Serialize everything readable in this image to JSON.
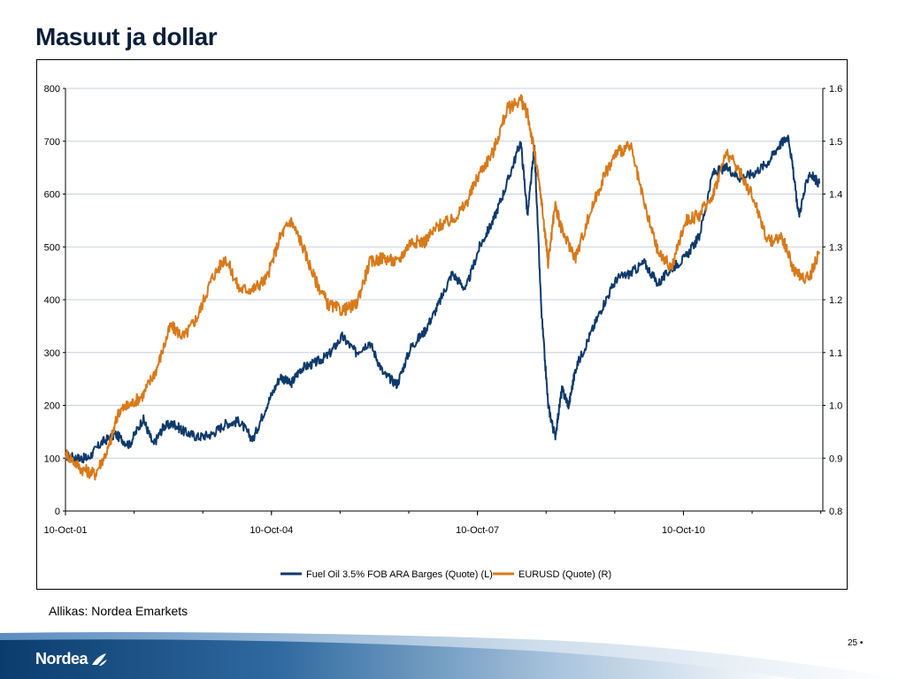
{
  "slide": {
    "title": "Masuut ja dollar",
    "source": "Allikas: Nordea Emarkets",
    "page_number": "25 •",
    "logo_text": "Nordea"
  },
  "colors": {
    "fuel_oil": "#0e3a6b",
    "eurusd": "#d77a1a",
    "grid": "#c8d0dc",
    "title": "#0b1f3a",
    "footer_dark": "#0b3c6e"
  },
  "chart_data": {
    "type": "line",
    "title": "",
    "xlabel": "",
    "ylabel_left": "",
    "ylabel_right": "",
    "x_ticks": [
      "10-Oct-01",
      "10-Oct-04",
      "10-Oct-07",
      "10-Oct-10"
    ],
    "y_left_ticks": [
      "0",
      "100",
      "200",
      "300",
      "400",
      "500",
      "600",
      "700",
      "800"
    ],
    "y_right_ticks": [
      "0.8",
      "0.9",
      "1.0",
      "1.1",
      "1.2",
      "1.3",
      "1.4",
      "1.5",
      "1.6"
    ],
    "ylim_left": [
      0,
      800
    ],
    "ylim_right": [
      0.8,
      1.6
    ],
    "xlim": [
      2001.77,
      2012.8
    ],
    "grid": true,
    "legend_position": "bottom",
    "series": [
      {
        "name": "Fuel Oil 3.5% FOB ARA Barges (Quote) (L)",
        "axis": "left",
        "color": "#0e3a6b",
        "x": [
          2001.77,
          2001.95,
          2002.1,
          2002.3,
          2002.5,
          2002.7,
          2002.9,
          2003.05,
          2003.2,
          2003.35,
          2003.5,
          2003.7,
          2003.9,
          2004.1,
          2004.3,
          2004.5,
          2004.7,
          2004.9,
          2005.05,
          2005.2,
          2005.4,
          2005.6,
          2005.8,
          2006.0,
          2006.2,
          2006.4,
          2006.6,
          2006.8,
          2007.0,
          2007.2,
          2007.4,
          2007.6,
          2007.8,
          2008.0,
          2008.2,
          2008.4,
          2008.5,
          2008.6,
          2008.7,
          2008.8,
          2008.9,
          2009.0,
          2009.1,
          2009.2,
          2009.4,
          2009.6,
          2009.8,
          2010.0,
          2010.2,
          2010.4,
          2010.6,
          2010.8,
          2011.0,
          2011.2,
          2011.4,
          2011.6,
          2011.8,
          2012.0,
          2012.15,
          2012.3,
          2012.45,
          2012.6,
          2012.75
        ],
        "values": [
          105,
          100,
          100,
          130,
          145,
          125,
          175,
          125,
          160,
          165,
          150,
          140,
          145,
          165,
          170,
          135,
          200,
          255,
          240,
          270,
          280,
          295,
          330,
          300,
          320,
          260,
          240,
          310,
          340,
          390,
          450,
          420,
          500,
          550,
          620,
          700,
          560,
          690,
          380,
          200,
          140,
          230,
          200,
          270,
          330,
          390,
          440,
          450,
          470,
          430,
          460,
          480,
          520,
          640,
          650,
          630,
          640,
          660,
          690,
          710,
          560,
          640,
          620
        ]
      },
      {
        "name": "EURUSD (Quote) (R)",
        "axis": "right",
        "color": "#d77a1a",
        "x": [
          2001.77,
          2002.0,
          2002.2,
          2002.4,
          2002.55,
          2002.7,
          2002.9,
          2003.1,
          2003.3,
          2003.5,
          2003.7,
          2003.9,
          2004.1,
          2004.3,
          2004.5,
          2004.7,
          2004.9,
          2005.05,
          2005.2,
          2005.4,
          2005.6,
          2005.8,
          2006.0,
          2006.2,
          2006.4,
          2006.6,
          2006.8,
          2007.0,
          2007.2,
          2007.4,
          2007.6,
          2007.8,
          2008.0,
          2008.2,
          2008.4,
          2008.5,
          2008.6,
          2008.7,
          2008.8,
          2008.9,
          2009.0,
          2009.2,
          2009.4,
          2009.6,
          2009.8,
          2010.0,
          2010.2,
          2010.4,
          2010.6,
          2010.8,
          2011.0,
          2011.2,
          2011.4,
          2011.6,
          2011.8,
          2012.0,
          2012.2,
          2012.4,
          2012.6,
          2012.75
        ],
        "values": [
          0.91,
          0.88,
          0.87,
          0.92,
          0.99,
          1.0,
          1.02,
          1.07,
          1.15,
          1.13,
          1.17,
          1.24,
          1.28,
          1.22,
          1.22,
          1.24,
          1.32,
          1.35,
          1.31,
          1.24,
          1.19,
          1.18,
          1.19,
          1.27,
          1.28,
          1.27,
          1.31,
          1.31,
          1.34,
          1.35,
          1.38,
          1.44,
          1.48,
          1.56,
          1.58,
          1.55,
          1.48,
          1.39,
          1.27,
          1.38,
          1.33,
          1.28,
          1.36,
          1.43,
          1.48,
          1.49,
          1.38,
          1.29,
          1.26,
          1.35,
          1.36,
          1.4,
          1.48,
          1.44,
          1.39,
          1.31,
          1.32,
          1.25,
          1.24,
          1.29
        ]
      }
    ]
  }
}
